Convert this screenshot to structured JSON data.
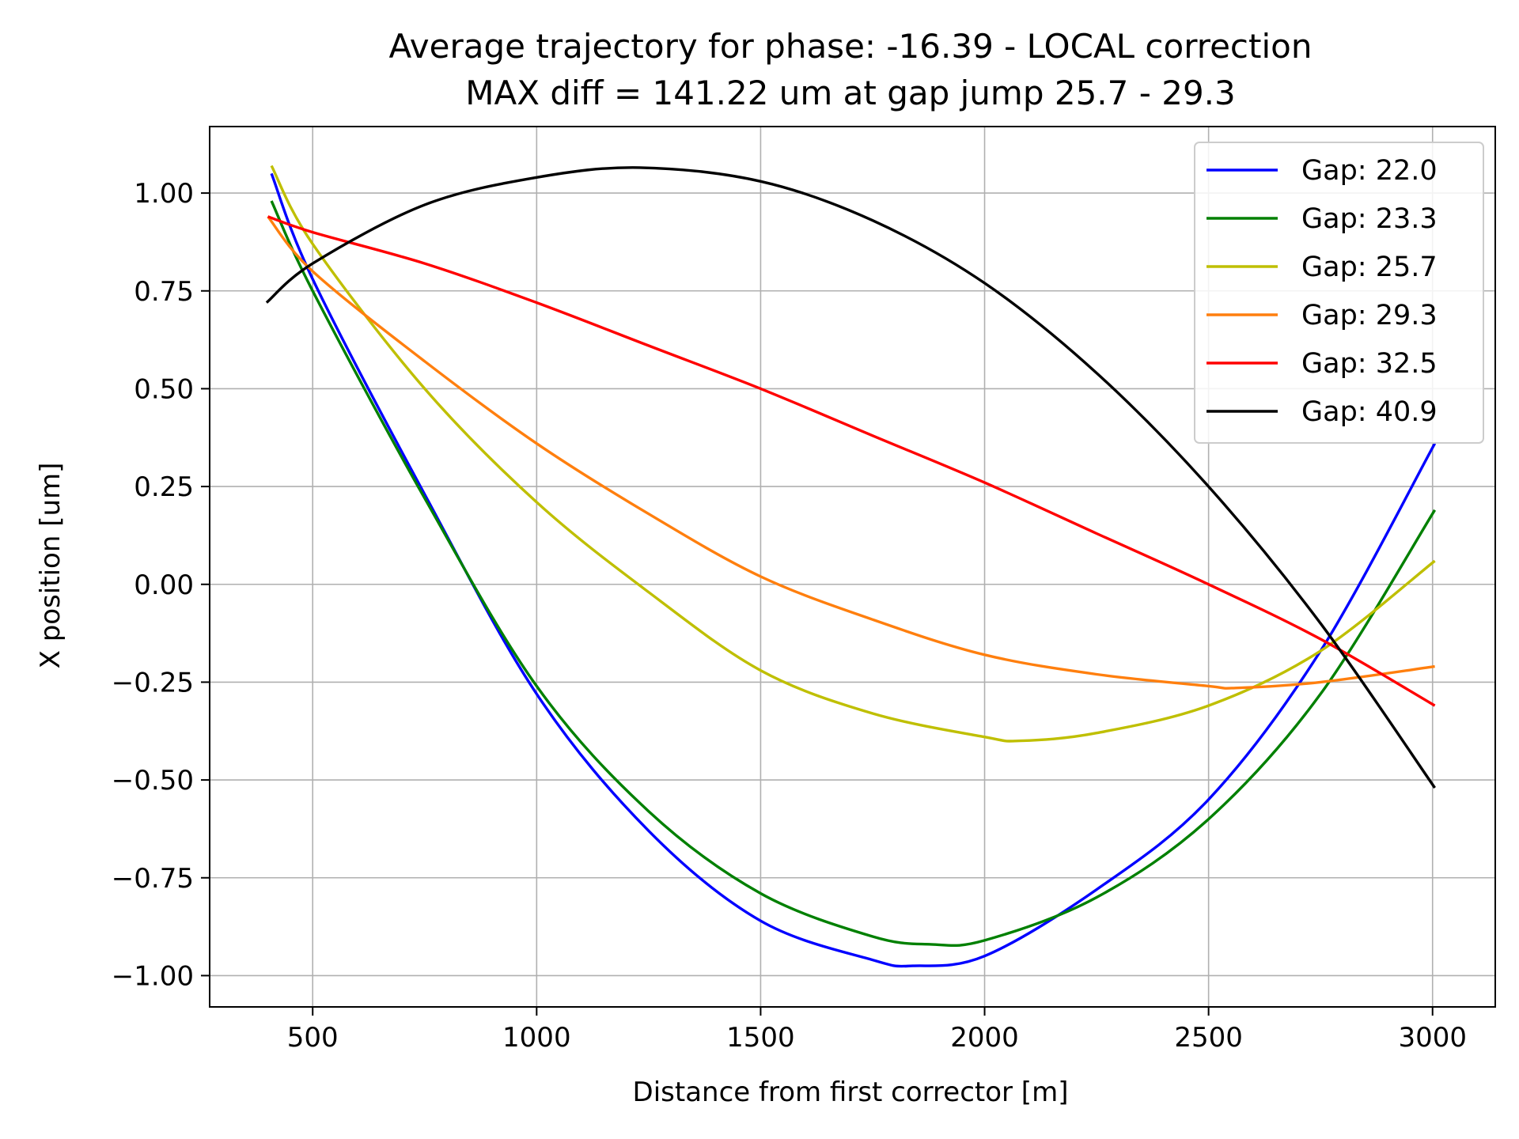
{
  "chart_data": {
    "type": "line",
    "title_line1": "Average trajectory for phase: -16.39 - LOCAL correction",
    "title_line2": "MAX diff = 141.22 um at gap jump 25.7 - 29.3",
    "xlabel": "Distance from first corrector [m]",
    "ylabel": "X position [um]",
    "xlim": [
      270,
      3140
    ],
    "ylim": [
      -1.08,
      1.17
    ],
    "xticks": [
      500,
      1000,
      1500,
      2000,
      2500,
      3000
    ],
    "xtick_labels": [
      "500",
      "1000",
      "1500",
      "2000",
      "2500",
      "3000"
    ],
    "yticks": [
      1.0,
      0.75,
      0.5,
      0.25,
      0.0,
      -0.25,
      -0.5,
      -0.75,
      -1.0
    ],
    "ytick_labels": [
      "1.00",
      "0.75",
      "0.50",
      "0.25",
      "0.00",
      "−0.25",
      "−0.50",
      "−0.75",
      "−1.00"
    ],
    "grid": true,
    "legend_position": "top-right",
    "series": [
      {
        "name": "Gap: 22.0",
        "color": "#0000ff",
        "x": [
          408,
          500,
          750,
          1000,
          1250,
          1500,
          1750,
          1840,
          2000,
          2250,
          2500,
          2750,
          3005
        ],
        "y": [
          1.05,
          0.78,
          0.23,
          -0.28,
          -0.63,
          -0.86,
          -0.96,
          -0.975,
          -0.95,
          -0.78,
          -0.55,
          -0.17,
          0.36
        ]
      },
      {
        "name": "Gap: 23.3",
        "color": "#008000",
        "x": [
          408,
          500,
          750,
          1000,
          1250,
          1500,
          1750,
          1880,
          2000,
          2250,
          2500,
          2750,
          3005
        ],
        "y": [
          0.98,
          0.75,
          0.22,
          -0.26,
          -0.58,
          -0.79,
          -0.9,
          -0.92,
          -0.91,
          -0.8,
          -0.6,
          -0.28,
          0.19
        ]
      },
      {
        "name": "Gap: 25.7",
        "color": "#bfbf00",
        "x": [
          408,
          500,
          750,
          1000,
          1250,
          1500,
          1750,
          2000,
          2080,
          2250,
          2500,
          2750,
          3005
        ],
        "y": [
          1.07,
          0.87,
          0.5,
          0.21,
          -0.02,
          -0.22,
          -0.33,
          -0.39,
          -0.4,
          -0.38,
          -0.31,
          -0.17,
          0.06
        ]
      },
      {
        "name": "Gap: 29.3",
        "color": "#ff7f0e",
        "x": [
          400,
          500,
          750,
          1000,
          1250,
          1500,
          1750,
          2000,
          2250,
          2500,
          2560,
          2750,
          3005
        ],
        "y": [
          0.94,
          0.8,
          0.57,
          0.36,
          0.18,
          0.02,
          -0.09,
          -0.18,
          -0.23,
          -0.26,
          -0.265,
          -0.25,
          -0.21
        ]
      },
      {
        "name": "Gap: 32.5",
        "color": "#ff0000",
        "x": [
          400,
          500,
          750,
          1000,
          1250,
          1500,
          1750,
          2000,
          2250,
          2500,
          2750,
          3005
        ],
        "y": [
          0.94,
          0.9,
          0.82,
          0.72,
          0.61,
          0.5,
          0.38,
          0.26,
          0.13,
          -0.0,
          -0.14,
          -0.31
        ]
      },
      {
        "name": "Gap: 40.9",
        "color": "#000000",
        "x": [
          397,
          500,
          750,
          1000,
          1230,
          1500,
          1750,
          2000,
          2250,
          2500,
          2750,
          3005
        ],
        "y": [
          0.72,
          0.82,
          0.97,
          1.04,
          1.065,
          1.03,
          0.93,
          0.77,
          0.54,
          0.25,
          -0.1,
          -0.52
        ]
      }
    ]
  }
}
